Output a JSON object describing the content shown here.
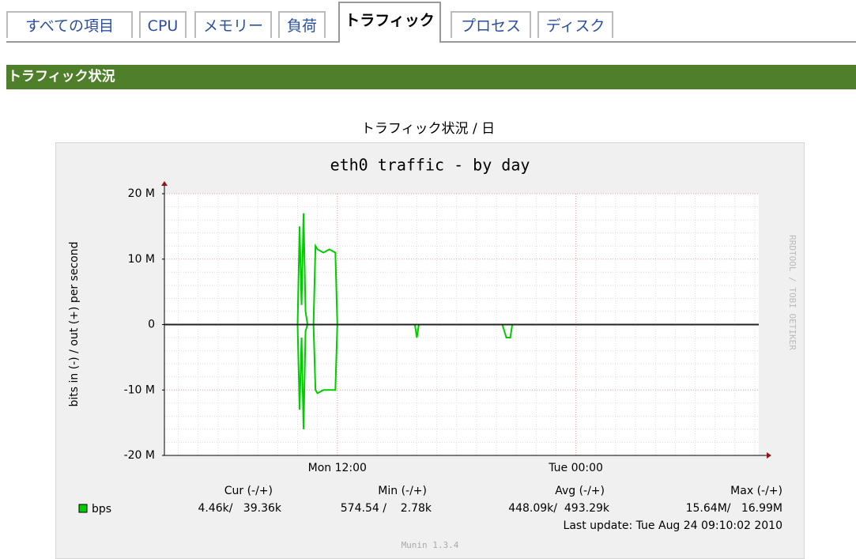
{
  "tabs": [
    "すべての項目",
    "CPU",
    "メモリー",
    "負荷",
    "トラフィック",
    "プロセス",
    "ディスク"
  ],
  "active_tab": 4,
  "section_title": "トラフィック状況",
  "graph_caption": "トラフィック状況 / 日",
  "chart_data": {
    "type": "line",
    "title": "eth0 traffic - by day",
    "y_label": "bits in (-) / out (+) per second",
    "side_text": "RRDTOOL / TOBI OETIKER",
    "footer": "Munin 1.3.4",
    "x": [
      3.3,
      10.0,
      10.1,
      10.2,
      10.3,
      10.4,
      10.5,
      10.6,
      10.8,
      10.9,
      11.0,
      11.3,
      11.6,
      11.9,
      12.0,
      12.1,
      15.9,
      16.0,
      16.1,
      20.3,
      20.5,
      20.7,
      20.8,
      33.2
    ],
    "series": [
      {
        "name": "bps",
        "color": "#00cc00",
        "values": [
          0,
          0,
          15,
          3,
          17,
          2,
          0,
          0,
          0,
          12,
          11.5,
          11,
          11.5,
          11,
          0,
          0,
          0,
          0,
          0,
          0,
          0,
          0,
          0,
          0
        ]
      },
      {
        "color": "#00cc00",
        "values": [
          0,
          0,
          -13,
          -2,
          -16,
          -1,
          0,
          0,
          0,
          -10,
          -10.5,
          -10,
          -10,
          -10,
          0,
          0,
          0,
          -2,
          0,
          0,
          -2,
          -2,
          0,
          0
        ]
      }
    ],
    "xlim": [
      3.3,
      33.2
    ],
    "xticks": [
      {
        "value": 12,
        "label": "Mon 12:00"
      },
      {
        "value": 24,
        "label": "Tue 00:00"
      }
    ],
    "ylim": [
      -20,
      20
    ],
    "yticks": [
      {
        "value": -20,
        "label": "-20 M"
      },
      {
        "value": -10,
        "label": "-10 M"
      },
      0,
      {
        "value": 10,
        "label": "10 M"
      },
      {
        "value": 20,
        "label": "20 M"
      }
    ],
    "grid": true,
    "stats_headers": [
      "Cur (-/+)",
      "Min (-/+)",
      "Avg (-/+)",
      "Max (-/+)"
    ],
    "stats_values": [
      "4.46k/   39.36k",
      "574.54 /    2.78k",
      "448.09k/  493.29k",
      "15.64M/   16.99M"
    ],
    "last_update": "Last update: Tue Aug 24 09:10:02 2010"
  }
}
